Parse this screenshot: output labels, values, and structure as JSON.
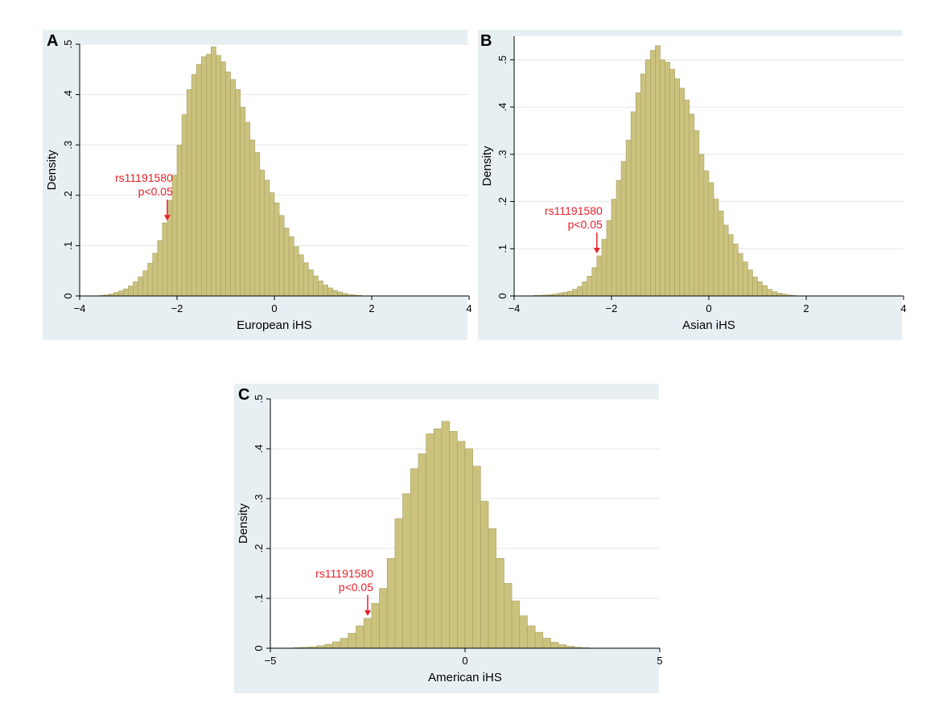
{
  "colors": {
    "bar_fill": "#cbc27e",
    "bar_stroke": "#a6a064",
    "panel_bg": "#e8eff3",
    "annotation": "#e8202a",
    "grid": "#e6e6e6"
  },
  "chart_data": [
    {
      "panel_label": "A",
      "type": "bar",
      "title": "",
      "xlabel": "European iHS",
      "ylabel": "Density",
      "xlim": [
        -4,
        4
      ],
      "ylim": [
        0,
        0.5
      ],
      "xticks": [
        "-4",
        "-2",
        "0",
        "2",
        "4"
      ],
      "xtick_values": [
        -4,
        -2,
        0,
        2,
        4
      ],
      "yticks": [
        "0",
        ".1",
        ".2",
        ".3",
        ".4",
        ".5"
      ],
      "ytick_values": [
        0,
        0.1,
        0.2,
        0.3,
        0.4,
        0.5
      ],
      "bin_start": -3.6,
      "bin_width": 0.1,
      "values": [
        0.001,
        0.002,
        0.004,
        0.007,
        0.01,
        0.014,
        0.02,
        0.028,
        0.038,
        0.05,
        0.065,
        0.085,
        0.11,
        0.145,
        0.19,
        0.24,
        0.3,
        0.36,
        0.41,
        0.44,
        0.46,
        0.475,
        0.48,
        0.495,
        0.478,
        0.465,
        0.445,
        0.43,
        0.41,
        0.375,
        0.345,
        0.31,
        0.285,
        0.25,
        0.23,
        0.205,
        0.185,
        0.16,
        0.135,
        0.118,
        0.098,
        0.082,
        0.066,
        0.052,
        0.04,
        0.03,
        0.022,
        0.016,
        0.011,
        0.008,
        0.005,
        0.003,
        0.002,
        0.001
      ],
      "annotation": {
        "snp": "rs11191580",
        "pvalue": "p<0.05",
        "x": -2.2
      }
    },
    {
      "panel_label": "B",
      "type": "bar",
      "title": "",
      "xlabel": "Asian iHS",
      "ylabel": "Density",
      "xlim": [
        -4,
        4
      ],
      "ylim": [
        0,
        0.55
      ],
      "xticks": [
        "-4",
        "-2",
        "0",
        "2",
        "4"
      ],
      "xtick_values": [
        -4,
        -2,
        0,
        2,
        4
      ],
      "yticks": [
        "0",
        ".1",
        ".2",
        ".3",
        ".4",
        ".5"
      ],
      "ytick_values": [
        0,
        0.1,
        0.2,
        0.3,
        0.4,
        0.5
      ],
      "bin_start": -3.6,
      "bin_width": 0.1,
      "values": [
        0.001,
        0.001,
        0.002,
        0.003,
        0.004,
        0.006,
        0.008,
        0.01,
        0.014,
        0.02,
        0.03,
        0.042,
        0.06,
        0.085,
        0.12,
        0.16,
        0.205,
        0.245,
        0.285,
        0.33,
        0.39,
        0.43,
        0.47,
        0.5,
        0.52,
        0.53,
        0.5,
        0.495,
        0.48,
        0.46,
        0.44,
        0.415,
        0.385,
        0.35,
        0.3,
        0.265,
        0.24,
        0.205,
        0.18,
        0.15,
        0.13,
        0.11,
        0.09,
        0.072,
        0.055,
        0.04,
        0.03,
        0.022,
        0.014,
        0.009,
        0.006,
        0.004,
        0.002,
        0.001
      ],
      "annotation": {
        "snp": "rs11191580",
        "pvalue": "p<0.05",
        "x": -2.3
      }
    },
    {
      "panel_label": "C",
      "type": "bar",
      "title": "",
      "xlabel": "American iHS",
      "ylabel": "Density",
      "xlim": [
        -5,
        5
      ],
      "ylim": [
        0,
        0.5
      ],
      "xticks": [
        "-5",
        "0",
        "5"
      ],
      "xtick_values": [
        -5,
        0,
        5
      ],
      "yticks": [
        "0",
        ".1",
        ".2",
        ".3",
        ".4",
        ".5"
      ],
      "ytick_values": [
        0,
        0.1,
        0.2,
        0.3,
        0.4,
        0.5
      ],
      "bin_start": -4.4,
      "bin_width": 0.2,
      "values": [
        0.001,
        0.002,
        0.003,
        0.005,
        0.008,
        0.013,
        0.02,
        0.03,
        0.045,
        0.06,
        0.09,
        0.12,
        0.18,
        0.26,
        0.31,
        0.36,
        0.39,
        0.43,
        0.44,
        0.455,
        0.435,
        0.415,
        0.4,
        0.365,
        0.295,
        0.24,
        0.18,
        0.13,
        0.095,
        0.065,
        0.045,
        0.032,
        0.02,
        0.012,
        0.007,
        0.004,
        0.002,
        0.001
      ],
      "annotation": {
        "snp": "rs11191580",
        "pvalue": "p<0.05",
        "x": -2.5
      }
    }
  ]
}
